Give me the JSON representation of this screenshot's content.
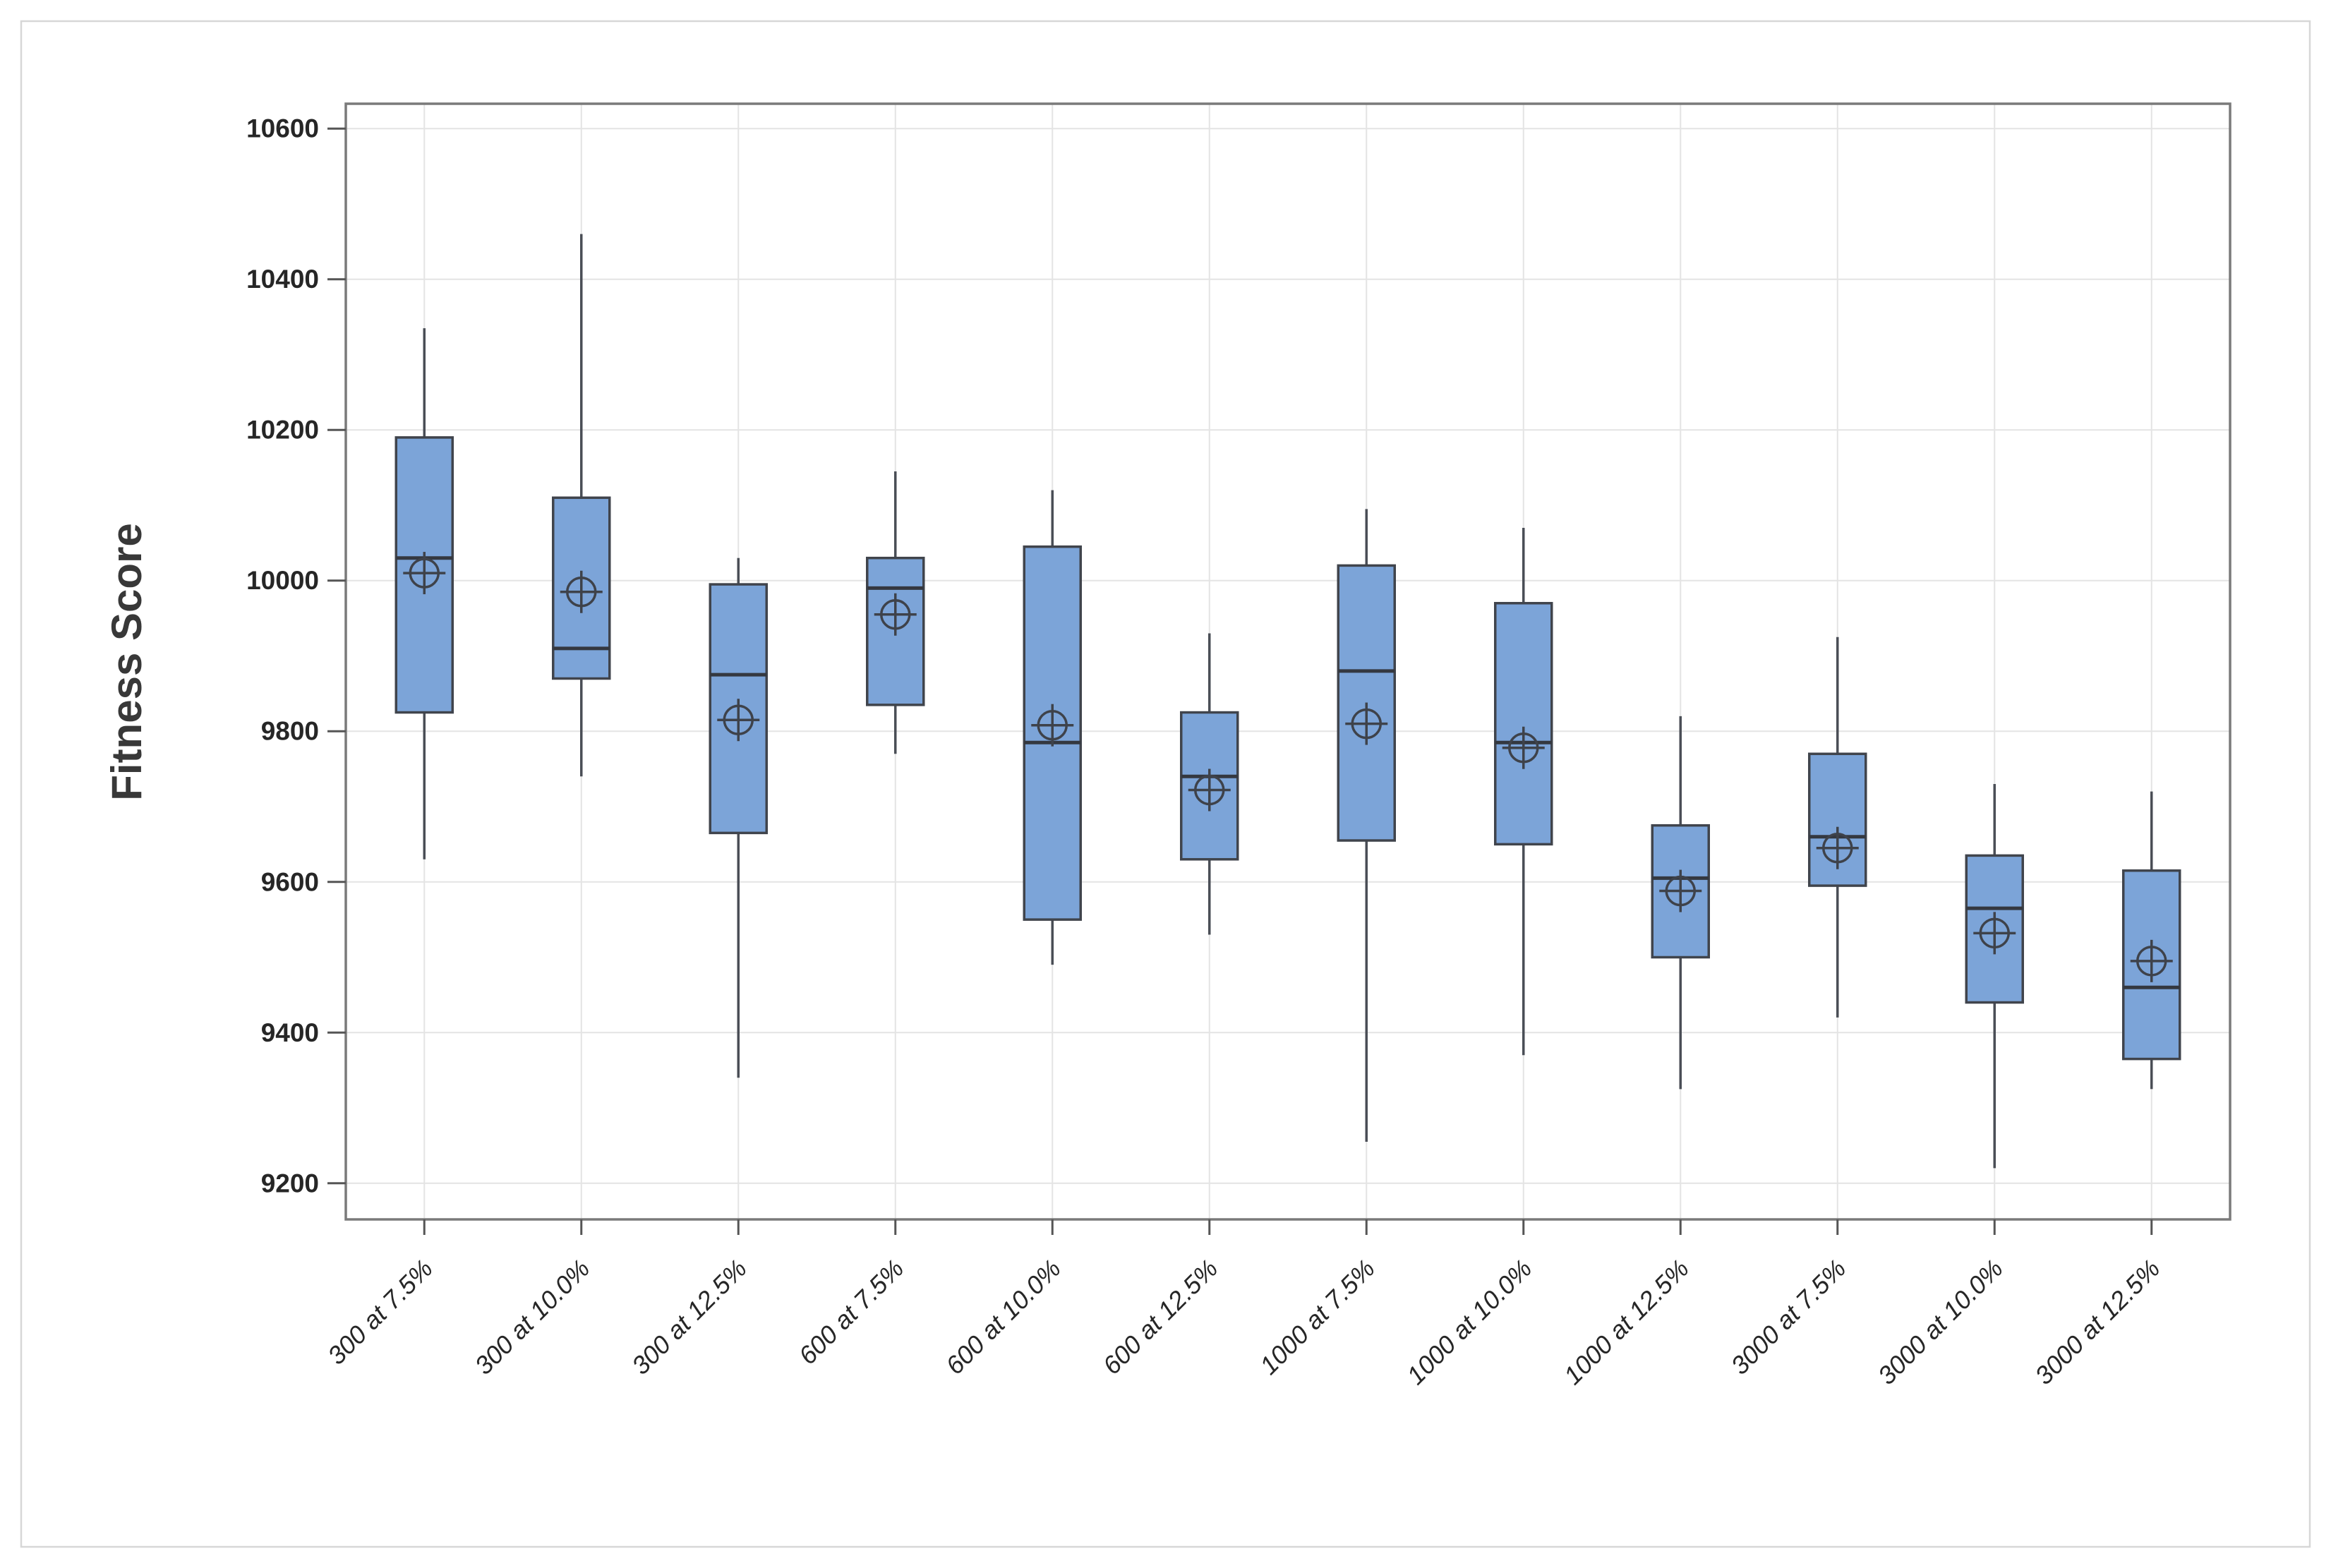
{
  "chart_data": {
    "type": "boxplot",
    "title": "",
    "xlabel": "",
    "ylabel": "Fitness Score",
    "ylim": [
      9152,
      10633
    ],
    "yticks": [
      9200,
      9400,
      9600,
      9800,
      10000,
      10200,
      10400,
      10600
    ],
    "grid": "horizontal and vertical light gray gridlines, on",
    "legend": "none",
    "mean_marker": "circled crosshair symbol at mean of each box",
    "categories": [
      "300 at 7.5%",
      "300 at 10.0%",
      "300 at 12.5%",
      "600 at 7.5%",
      "600 at 10.0%",
      "600 at 12.5%",
      "1000 at 7.5%",
      "1000 at 10.0%",
      "1000 at 12.5%",
      "3000 at 7.5%",
      "3000 at 10.0%",
      "3000 at 12.5%"
    ],
    "boxes": [
      {
        "label": "300 at 7.5%",
        "whisker_low": 9630,
        "q1": 9825,
        "median": 10030,
        "q3": 10190,
        "whisker_high": 10335,
        "mean": 10010
      },
      {
        "label": "300 at 10.0%",
        "whisker_low": 9740,
        "q1": 9870,
        "median": 9910,
        "q3": 10110,
        "whisker_high": 10460,
        "mean": 9985
      },
      {
        "label": "300 at 12.5%",
        "whisker_low": 9340,
        "q1": 9665,
        "median": 9875,
        "q3": 9995,
        "whisker_high": 10030,
        "mean": 9815
      },
      {
        "label": "600 at 7.5%",
        "whisker_low": 9770,
        "q1": 9835,
        "median": 9990,
        "q3": 10030,
        "whisker_high": 10145,
        "mean": 9955
      },
      {
        "label": "600 at 10.0%",
        "whisker_low": 9490,
        "q1": 9550,
        "median": 9785,
        "q3": 10045,
        "whisker_high": 10120,
        "mean": 9808
      },
      {
        "label": "600 at 12.5%",
        "whisker_low": 9530,
        "q1": 9630,
        "median": 9740,
        "q3": 9825,
        "whisker_high": 9930,
        "mean": 9722
      },
      {
        "label": "1000 at 7.5%",
        "whisker_low": 9255,
        "q1": 9655,
        "median": 9880,
        "q3": 10020,
        "whisker_high": 10095,
        "mean": 9810
      },
      {
        "label": "1000 at 10.0%",
        "whisker_low": 9370,
        "q1": 9650,
        "median": 9785,
        "q3": 9970,
        "whisker_high": 10070,
        "mean": 9778
      },
      {
        "label": "1000 at 12.5%",
        "whisker_low": 9325,
        "q1": 9500,
        "median": 9605,
        "q3": 9675,
        "whisker_high": 9820,
        "mean": 9588
      },
      {
        "label": "3000 at 7.5%",
        "whisker_low": 9420,
        "q1": 9595,
        "median": 9660,
        "q3": 9770,
        "whisker_high": 9925,
        "mean": 9645
      },
      {
        "label": "3000 at 10.0%",
        "whisker_low": 9220,
        "q1": 9440,
        "median": 9565,
        "q3": 9635,
        "whisker_high": 9730,
        "mean": 9532
      },
      {
        "label": "3000 at 12.5%",
        "whisker_low": 9325,
        "q1": 9365,
        "median": 9460,
        "q3": 9615,
        "whisker_high": 9720,
        "mean": 9495
      }
    ],
    "colors": {
      "box_fill": "#7CA4D8",
      "box_stroke": "#40444C",
      "whisker": "#4A4E56",
      "median": "#343840",
      "mean_marker": "#3E424A",
      "gridline": "#E4E4E4",
      "frame": "#7A7A7A",
      "tick": "#555555",
      "tick_label_text": "#262626",
      "axis_title_text": "#383838",
      "figure_border": "#D7D7D7",
      "background": "#FFFFFF"
    }
  }
}
